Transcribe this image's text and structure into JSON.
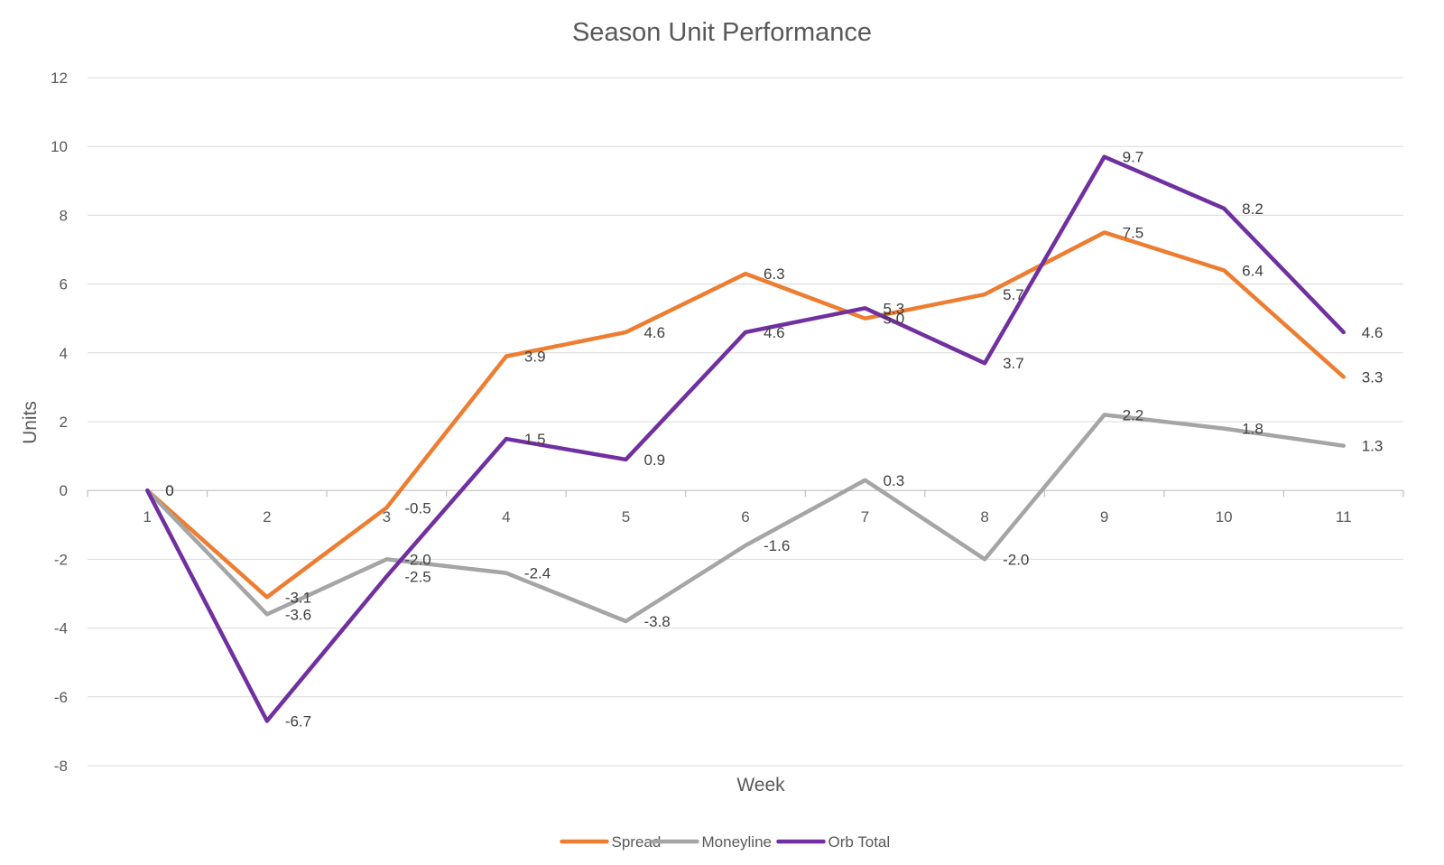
{
  "chart_data": {
    "type": "line",
    "title": "Season Unit Performance",
    "xlabel": "Week",
    "ylabel": "Units",
    "categories": [
      "1",
      "2",
      "3",
      "4",
      "5",
      "6",
      "7",
      "8",
      "9",
      "10",
      "11"
    ],
    "ylim": [
      -8,
      12
    ],
    "yticks": [
      "12",
      "10",
      "8",
      "6",
      "4",
      "2",
      "0",
      "-2",
      "-4",
      "-6",
      "-8"
    ],
    "grid": true,
    "legend_position": "bottom",
    "series": [
      {
        "name": "Spread",
        "color": "#ED7D31",
        "values": [
          0,
          -3.1,
          -0.5,
          3.9,
          4.6,
          6.3,
          5.0,
          5.7,
          7.5,
          6.4,
          3.3
        ],
        "labels": [
          "0",
          "-3.1",
          "-0.5",
          "3.9",
          "4.6",
          "6.3",
          "5.0",
          "5.7",
          "7.5",
          "6.4",
          "3.3"
        ]
      },
      {
        "name": "Moneyline",
        "color": "#A5A5A5",
        "values": [
          0,
          -3.6,
          -2.0,
          -2.4,
          -3.8,
          -1.6,
          0.3,
          -2.0,
          2.2,
          1.8,
          1.3
        ],
        "labels": [
          "0",
          "-3.6",
          "-2.0",
          "-2.4",
          "-3.8",
          "-1.6",
          "0.3",
          "-2.0",
          "2.2",
          "1.8",
          "1.3"
        ]
      },
      {
        "name": "Orb Total",
        "color": "#7030A0",
        "values": [
          0,
          -6.7,
          -2.5,
          1.5,
          0.9,
          4.6,
          5.3,
          3.7,
          9.7,
          8.2,
          4.6
        ],
        "labels": [
          "0",
          "-6.7",
          "-2.5",
          "1.5",
          "0.9",
          "4.6",
          "5.3",
          "3.7",
          "9.7",
          "8.2",
          "4.6"
        ]
      }
    ]
  }
}
